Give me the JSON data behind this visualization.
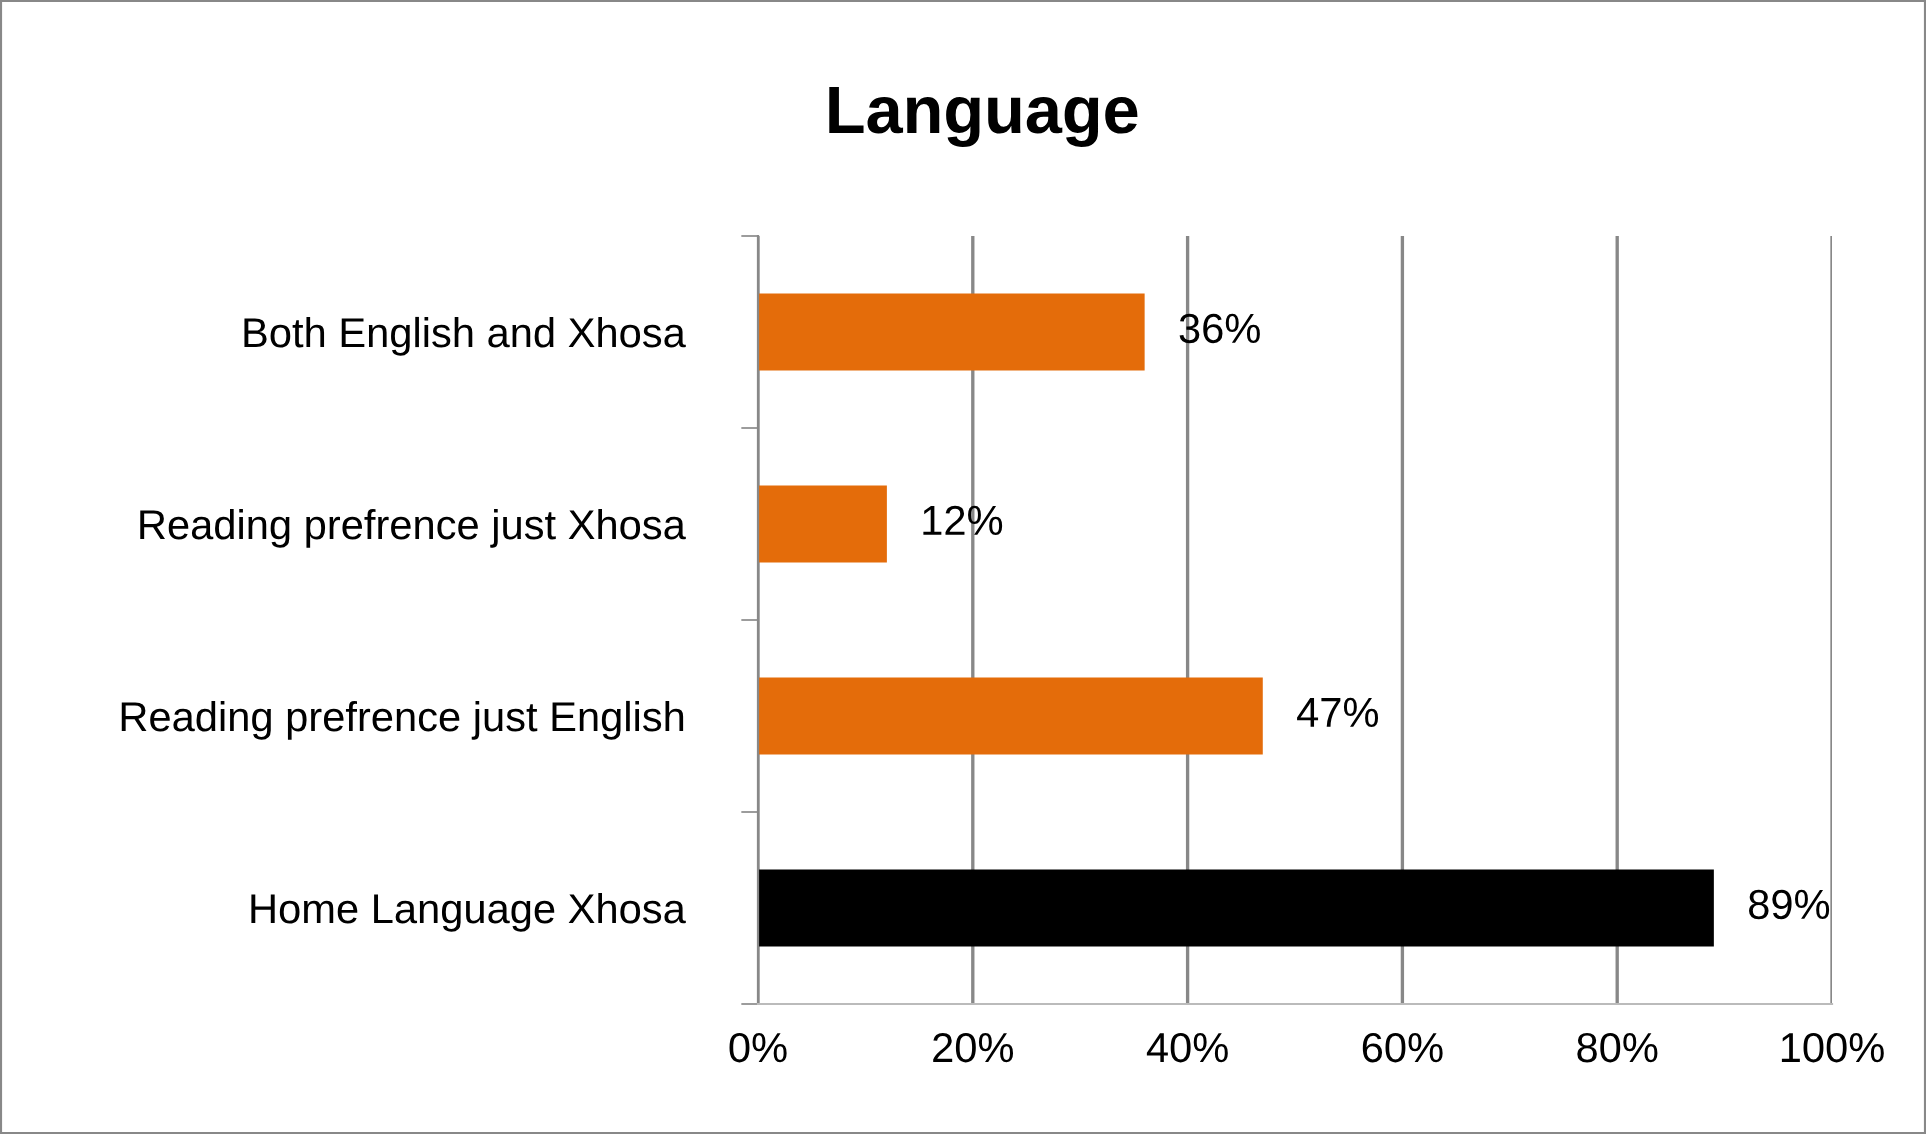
{
  "chart_data": {
    "type": "bar",
    "orientation": "horizontal",
    "title": "Language",
    "categories": [
      "Both English and Xhosa",
      "Reading prefrence just Xhosa",
      "Reading prefrence just English",
      "Home Language Xhosa"
    ],
    "values": [
      36,
      12,
      47,
      89
    ],
    "colors": [
      "#e46c0a",
      "#e46c0a",
      "#e46c0a",
      "#000000"
    ],
    "value_labels": [
      "36%",
      "12%",
      "47%",
      "89%"
    ],
    "xlim": [
      0,
      100
    ],
    "xticks": [
      {
        "value": 0,
        "label": "0%"
      },
      {
        "value": 20,
        "label": "20%"
      },
      {
        "value": 40,
        "label": "40%"
      },
      {
        "value": 60,
        "label": "60%"
      },
      {
        "value": 80,
        "label": "80%"
      },
      {
        "value": 100,
        "label": "100%"
      }
    ],
    "grid": "x",
    "legend": false
  }
}
